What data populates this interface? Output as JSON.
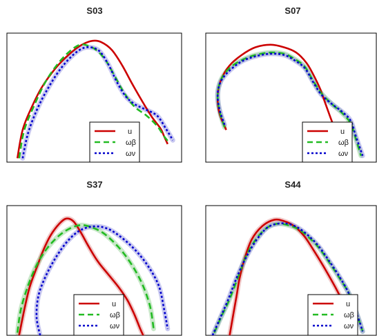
{
  "figure": {
    "background": "#ffffff"
  },
  "chart_data": [
    {
      "type": "line",
      "title": "S03",
      "xlabel": "",
      "ylabel": "",
      "xlim": [
        0,
        1
      ],
      "ylim": [
        0,
        1
      ],
      "grid": false,
      "legend": "bottom-right",
      "series": [
        {
          "name": "u",
          "color": "#cc0000",
          "style": "solid",
          "band": false,
          "x": [
            0.06,
            0.09,
            0.14,
            0.2,
            0.28,
            0.36,
            0.43,
            0.49,
            0.54,
            0.6,
            0.66,
            0.72,
            0.78,
            0.83,
            0.88,
            0.9,
            0.92
          ],
          "y": [
            0.03,
            0.25,
            0.42,
            0.58,
            0.73,
            0.84,
            0.91,
            0.94,
            0.93,
            0.87,
            0.75,
            0.6,
            0.46,
            0.35,
            0.26,
            0.2,
            0.14
          ]
        },
        {
          "name": "ωβ",
          "color": "#22bb22",
          "style": "dashed",
          "band": false,
          "x": [
            0.07,
            0.1,
            0.16,
            0.22,
            0.29,
            0.36,
            0.42,
            0.47,
            0.52,
            0.57,
            0.62,
            0.67,
            0.73,
            0.8,
            0.86,
            0.9,
            0.93
          ],
          "y": [
            0.03,
            0.25,
            0.45,
            0.62,
            0.76,
            0.86,
            0.91,
            0.9,
            0.86,
            0.78,
            0.66,
            0.54,
            0.43,
            0.36,
            0.28,
            0.2,
            0.15
          ]
        },
        {
          "name": "ων",
          "color": "#0000cc",
          "style": "dotted",
          "band": true,
          "band_color": "#8888dd",
          "x": [
            0.09,
            0.12,
            0.17,
            0.23,
            0.3,
            0.37,
            0.43,
            0.48,
            0.53,
            0.58,
            0.63,
            0.68,
            0.73,
            0.79,
            0.86,
            0.91,
            0.95
          ],
          "y": [
            0.03,
            0.22,
            0.4,
            0.56,
            0.71,
            0.82,
            0.88,
            0.89,
            0.86,
            0.76,
            0.62,
            0.51,
            0.45,
            0.41,
            0.36,
            0.26,
            0.17
          ]
        }
      ]
    },
    {
      "type": "line",
      "title": "S07",
      "xlabel": "",
      "ylabel": "",
      "xlim": [
        0,
        1
      ],
      "ylim": [
        0,
        1
      ],
      "grid": false,
      "legend": "bottom-right",
      "series": [
        {
          "name": "u",
          "color": "#cc0000",
          "style": "solid",
          "band": false,
          "x": [
            0.12,
            0.08,
            0.07,
            0.09,
            0.14,
            0.21,
            0.29,
            0.38,
            0.46,
            0.53,
            0.59,
            0.63,
            0.67,
            0.7,
            0.73,
            0.76,
            0.79,
            0.81
          ],
          "y": [
            0.25,
            0.38,
            0.52,
            0.64,
            0.75,
            0.83,
            0.89,
            0.91,
            0.89,
            0.85,
            0.77,
            0.68,
            0.57,
            0.46,
            0.35,
            0.24,
            0.1,
            0.0
          ]
        },
        {
          "name": "ωβ",
          "color": "#22bb22",
          "style": "dashed",
          "band": true,
          "band_color": "#88cc88",
          "x": [
            0.11,
            0.08,
            0.07,
            0.09,
            0.14,
            0.21,
            0.29,
            0.38,
            0.46,
            0.52,
            0.58,
            0.63,
            0.68,
            0.74,
            0.8,
            0.85,
            0.88,
            0.91
          ],
          "y": [
            0.27,
            0.4,
            0.53,
            0.64,
            0.73,
            0.79,
            0.83,
            0.85,
            0.84,
            0.8,
            0.74,
            0.63,
            0.53,
            0.45,
            0.38,
            0.3,
            0.18,
            0.05
          ]
        },
        {
          "name": "ων",
          "color": "#0000cc",
          "style": "dotted",
          "band": true,
          "band_color": "#8888dd",
          "x": [
            0.11,
            0.08,
            0.07,
            0.09,
            0.14,
            0.21,
            0.29,
            0.38,
            0.46,
            0.52,
            0.58,
            0.63,
            0.68,
            0.74,
            0.8,
            0.85,
            0.88,
            0.92
          ],
          "y": [
            0.29,
            0.41,
            0.53,
            0.63,
            0.71,
            0.78,
            0.82,
            0.84,
            0.83,
            0.79,
            0.73,
            0.62,
            0.52,
            0.45,
            0.39,
            0.32,
            0.2,
            0.05
          ]
        }
      ]
    },
    {
      "type": "line",
      "title": "S37",
      "xlabel": "",
      "ylabel": "",
      "xlim": [
        0,
        1
      ],
      "ylim": [
        0,
        1
      ],
      "grid": false,
      "legend": "bottom-right",
      "series": [
        {
          "name": "u",
          "color": "#cc0000",
          "style": "solid",
          "band": true,
          "band_color": "#dd8888",
          "x": [
            0.07,
            0.1,
            0.13,
            0.17,
            0.21,
            0.25,
            0.3,
            0.34,
            0.38,
            0.42,
            0.47,
            0.52,
            0.58,
            0.64,
            0.69,
            0.73,
            0.76,
            0.78
          ],
          "y": [
            0.0,
            0.2,
            0.37,
            0.52,
            0.66,
            0.77,
            0.86,
            0.9,
            0.88,
            0.8,
            0.68,
            0.57,
            0.47,
            0.37,
            0.27,
            0.16,
            0.06,
            0.0
          ]
        },
        {
          "name": "ωβ",
          "color": "#22bb22",
          "style": "dashed",
          "band": true,
          "band_color": "#88cc88",
          "x": [
            0.06,
            0.08,
            0.12,
            0.17,
            0.23,
            0.3,
            0.37,
            0.43,
            0.49,
            0.55,
            0.61,
            0.67,
            0.73,
            0.78,
            0.82,
            0.84
          ],
          "y": [
            0.02,
            0.2,
            0.38,
            0.54,
            0.67,
            0.77,
            0.83,
            0.85,
            0.83,
            0.79,
            0.72,
            0.63,
            0.51,
            0.38,
            0.22,
            0.05
          ]
        },
        {
          "name": "ων",
          "color": "#0000cc",
          "style": "dotted",
          "band": true,
          "band_color": "#8888dd",
          "x": [
            0.19,
            0.17,
            0.18,
            0.22,
            0.28,
            0.35,
            0.42,
            0.5,
            0.58,
            0.66,
            0.74,
            0.81,
            0.87,
            0.9,
            0.92
          ],
          "y": [
            0.0,
            0.14,
            0.3,
            0.45,
            0.6,
            0.73,
            0.81,
            0.84,
            0.82,
            0.75,
            0.65,
            0.53,
            0.38,
            0.2,
            0.05
          ]
        }
      ]
    },
    {
      "type": "line",
      "title": "S44",
      "xlabel": "",
      "ylabel": "",
      "xlim": [
        0,
        1
      ],
      "ylim": [
        0,
        1
      ],
      "grid": false,
      "legend": "bottom-right",
      "series": [
        {
          "name": "u",
          "color": "#cc0000",
          "style": "solid",
          "band": true,
          "band_color": "#dd8888",
          "x": [
            0.14,
            0.16,
            0.18,
            0.2,
            0.23,
            0.27,
            0.33,
            0.4,
            0.46,
            0.52,
            0.58,
            0.64,
            0.7,
            0.76,
            0.81,
            0.85,
            0.87
          ],
          "y": [
            0.0,
            0.15,
            0.3,
            0.45,
            0.6,
            0.74,
            0.84,
            0.89,
            0.88,
            0.84,
            0.76,
            0.64,
            0.51,
            0.37,
            0.24,
            0.12,
            0.0
          ]
        },
        {
          "name": "ωβ",
          "color": "#22bb22",
          "style": "dashed",
          "band": true,
          "band_color": "#88cc88",
          "x": [
            0.05,
            0.09,
            0.14,
            0.19,
            0.24,
            0.3,
            0.36,
            0.42,
            0.48,
            0.54,
            0.6,
            0.66,
            0.72,
            0.78,
            0.84,
            0.89,
            0.92
          ],
          "y": [
            0.02,
            0.14,
            0.28,
            0.45,
            0.62,
            0.75,
            0.83,
            0.86,
            0.85,
            0.82,
            0.76,
            0.68,
            0.57,
            0.45,
            0.32,
            0.15,
            0.03
          ]
        },
        {
          "name": "ων",
          "color": "#0000cc",
          "style": "dotted",
          "band": true,
          "band_color": "#8888dd",
          "x": [
            0.04,
            0.08,
            0.13,
            0.18,
            0.24,
            0.3,
            0.36,
            0.42,
            0.48,
            0.54,
            0.6,
            0.66,
            0.72,
            0.78,
            0.84,
            0.89,
            0.92
          ],
          "y": [
            0.0,
            0.12,
            0.27,
            0.44,
            0.61,
            0.74,
            0.83,
            0.86,
            0.86,
            0.83,
            0.77,
            0.69,
            0.58,
            0.46,
            0.32,
            0.15,
            0.03
          ]
        }
      ]
    }
  ]
}
